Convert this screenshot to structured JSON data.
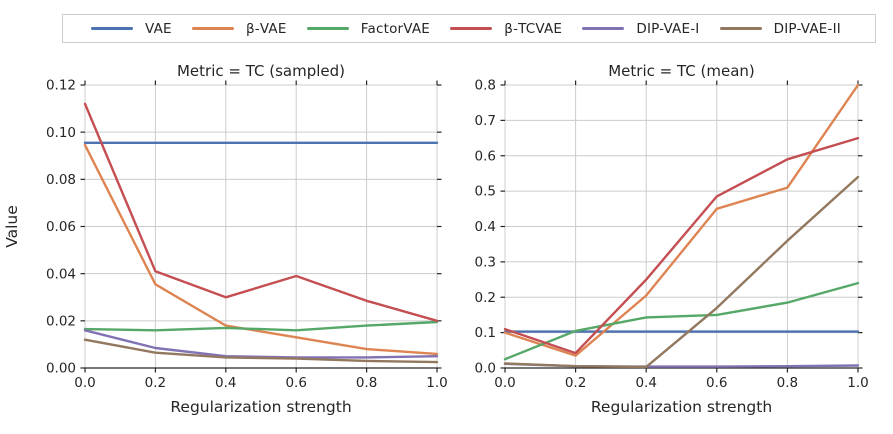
{
  "figure": {
    "background": "#ffffff",
    "grid_color": "#cccccc",
    "axis_color": "#262626",
    "xlabel": "Regularization strength"
  },
  "legend": {
    "items": [
      {
        "label": "VAE",
        "color": "#4C72B0"
      },
      {
        "label": "β-VAE",
        "color": "#DD8452"
      },
      {
        "label": "FactorVAE",
        "color": "#55A868"
      },
      {
        "label": "β-TCVAE",
        "color": "#C44E52"
      },
      {
        "label": "DIP-VAE-I",
        "color": "#8172B3"
      },
      {
        "label": "DIP-VAE-II",
        "color": "#937860"
      }
    ]
  },
  "chart_data": [
    {
      "type": "line",
      "title": "Metric = TC (sampled)",
      "xlabel": "Regularization strength",
      "ylabel": "Value",
      "x": [
        0.0,
        0.2,
        0.4,
        0.6,
        0.8,
        1.0
      ],
      "xlim": [
        0.0,
        1.0
      ],
      "ylim": [
        0.0,
        0.12
      ],
      "xticks": [
        0.0,
        0.2,
        0.4,
        0.6,
        0.8,
        1.0
      ],
      "xtick_labels": [
        "0.0",
        "0.2",
        "0.4",
        "0.6",
        "0.8",
        "1.0"
      ],
      "yticks": [
        0.0,
        0.02,
        0.04,
        0.06,
        0.08,
        0.1,
        0.12
      ],
      "ytick_labels": [
        "0.00",
        "0.02",
        "0.04",
        "0.06",
        "0.08",
        "0.10",
        "0.12"
      ],
      "grid": true,
      "legend_position": "top-outside",
      "series": [
        {
          "name": "VAE",
          "color": "#4C72B0",
          "values": [
            0.0955,
            0.0955,
            0.0955,
            0.0955,
            0.0955,
            0.0955
          ]
        },
        {
          "name": "β-VAE",
          "color": "#DD8452",
          "values": [
            0.0945,
            0.0355,
            0.018,
            0.013,
            0.008,
            0.006
          ]
        },
        {
          "name": "FactorVAE",
          "color": "#55A868",
          "values": [
            0.0165,
            0.016,
            0.017,
            0.016,
            0.018,
            0.0195
          ]
        },
        {
          "name": "β-TCVAE",
          "color": "#C44E52",
          "values": [
            0.112,
            0.041,
            0.03,
            0.039,
            0.0285,
            0.02
          ]
        },
        {
          "name": "DIP-VAE-I",
          "color": "#8172B3",
          "values": [
            0.016,
            0.0085,
            0.005,
            0.0045,
            0.0045,
            0.005
          ]
        },
        {
          "name": "DIP-VAE-II",
          "color": "#937860",
          "values": [
            0.012,
            0.0065,
            0.0045,
            0.004,
            0.003,
            0.0025
          ]
        }
      ]
    },
    {
      "type": "line",
      "title": "Metric = TC (mean)",
      "xlabel": "Regularization strength",
      "ylabel": "",
      "x": [
        0.0,
        0.2,
        0.4,
        0.6,
        0.8,
        1.0
      ],
      "xlim": [
        0.0,
        1.0
      ],
      "ylim": [
        0.0,
        0.8
      ],
      "xticks": [
        0.0,
        0.2,
        0.4,
        0.6,
        0.8,
        1.0
      ],
      "xtick_labels": [
        "0.0",
        "0.2",
        "0.4",
        "0.6",
        "0.8",
        "1.0"
      ],
      "yticks": [
        0.0,
        0.1,
        0.2,
        0.3,
        0.4,
        0.5,
        0.6,
        0.7,
        0.8
      ],
      "ytick_labels": [
        "0.0",
        "0.1",
        "0.2",
        "0.3",
        "0.4",
        "0.5",
        "0.6",
        "0.7",
        "0.8"
      ],
      "grid": true,
      "legend_position": "top-outside",
      "series": [
        {
          "name": "VAE",
          "color": "#4C72B0",
          "values": [
            0.103,
            0.103,
            0.103,
            0.103,
            0.103,
            0.103
          ]
        },
        {
          "name": "β-VAE",
          "color": "#DD8452",
          "values": [
            0.1,
            0.035,
            0.205,
            0.45,
            0.51,
            0.8
          ]
        },
        {
          "name": "FactorVAE",
          "color": "#55A868",
          "values": [
            0.025,
            0.105,
            0.143,
            0.15,
            0.185,
            0.24
          ]
        },
        {
          "name": "β-TCVAE",
          "color": "#C44E52",
          "values": [
            0.11,
            0.042,
            0.25,
            0.485,
            0.59,
            0.65
          ]
        },
        {
          "name": "DIP-VAE-I",
          "color": "#8172B3",
          "values": [
            0.012,
            0.005,
            0.004,
            0.004,
            0.005,
            0.007
          ]
        },
        {
          "name": "DIP-VAE-II",
          "color": "#937860",
          "values": [
            0.013,
            0.005,
            0.003,
            0.17,
            0.36,
            0.54
          ]
        }
      ]
    }
  ]
}
